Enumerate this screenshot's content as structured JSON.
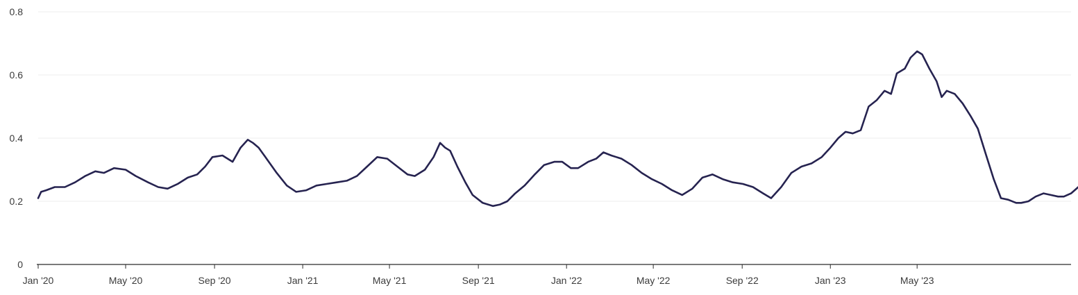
{
  "chart_data": {
    "type": "line",
    "title": "",
    "xlabel": "",
    "ylabel": "",
    "ylim": [
      0,
      0.8
    ],
    "yticks": [
      0,
      0.2,
      0.4,
      0.6,
      0.8
    ],
    "ytick_labels": [
      "0",
      "0.2",
      "0.4",
      "0.6",
      "0.8"
    ],
    "xlim": [
      "2020-01-01",
      "2023-11-30"
    ],
    "xticks": [
      {
        "date": "2020-01-01",
        "label": "Jan '20"
      },
      {
        "date": "2020-05-01",
        "label": "May '20"
      },
      {
        "date": "2020-09-01",
        "label": "Sep '20"
      },
      {
        "date": "2021-01-01",
        "label": "Jan '21"
      },
      {
        "date": "2021-05-01",
        "label": "May '21"
      },
      {
        "date": "2021-09-01",
        "label": "Sep '21"
      },
      {
        "date": "2022-01-01",
        "label": "Jan '22"
      },
      {
        "date": "2022-05-01",
        "label": "May '22"
      },
      {
        "date": "2022-09-01",
        "label": "Sep '22"
      },
      {
        "date": "2023-01-01",
        "label": "Jan '23"
      },
      {
        "date": "2023-05-01",
        "label": "May '23"
      }
    ],
    "grid": true,
    "legend": "none",
    "series": [
      {
        "color": "#262350",
        "points": [
          [
            "2020-01-01",
            0.21
          ],
          [
            "2020-01-05",
            0.23
          ],
          [
            "2020-01-12",
            0.235
          ],
          [
            "2020-01-24",
            0.245
          ],
          [
            "2020-02-07",
            0.245
          ],
          [
            "2020-02-21",
            0.26
          ],
          [
            "2020-03-06",
            0.28
          ],
          [
            "2020-03-20",
            0.295
          ],
          [
            "2020-04-01",
            0.29
          ],
          [
            "2020-04-15",
            0.305
          ],
          [
            "2020-05-01",
            0.3
          ],
          [
            "2020-05-15",
            0.28
          ],
          [
            "2020-06-01",
            0.26
          ],
          [
            "2020-06-15",
            0.245
          ],
          [
            "2020-06-28",
            0.24
          ],
          [
            "2020-07-12",
            0.255
          ],
          [
            "2020-07-26",
            0.275
          ],
          [
            "2020-08-08",
            0.285
          ],
          [
            "2020-08-19",
            0.31
          ],
          [
            "2020-08-29",
            0.34
          ],
          [
            "2020-09-12",
            0.345
          ],
          [
            "2020-09-26",
            0.325
          ],
          [
            "2020-10-07",
            0.37
          ],
          [
            "2020-10-17",
            0.395
          ],
          [
            "2020-10-24",
            0.385
          ],
          [
            "2020-11-01",
            0.37
          ],
          [
            "2020-11-12",
            0.335
          ],
          [
            "2020-11-26",
            0.29
          ],
          [
            "2020-12-10",
            0.25
          ],
          [
            "2020-12-23",
            0.23
          ],
          [
            "2021-01-06",
            0.235
          ],
          [
            "2021-01-20",
            0.25
          ],
          [
            "2021-02-03",
            0.255
          ],
          [
            "2021-02-17",
            0.26
          ],
          [
            "2021-03-03",
            0.265
          ],
          [
            "2021-03-17",
            0.28
          ],
          [
            "2021-03-31",
            0.31
          ],
          [
            "2021-04-14",
            0.34
          ],
          [
            "2021-04-28",
            0.335
          ],
          [
            "2021-05-12",
            0.31
          ],
          [
            "2021-05-26",
            0.285
          ],
          [
            "2021-06-05",
            0.28
          ],
          [
            "2021-06-19",
            0.3
          ],
          [
            "2021-07-01",
            0.34
          ],
          [
            "2021-07-10",
            0.385
          ],
          [
            "2021-07-17",
            0.37
          ],
          [
            "2021-07-24",
            0.36
          ],
          [
            "2021-08-03",
            0.31
          ],
          [
            "2021-08-14",
            0.26
          ],
          [
            "2021-08-24",
            0.22
          ],
          [
            "2021-09-07",
            0.195
          ],
          [
            "2021-09-21",
            0.185
          ],
          [
            "2021-10-01",
            0.19
          ],
          [
            "2021-10-11",
            0.2
          ],
          [
            "2021-10-22",
            0.225
          ],
          [
            "2021-11-04",
            0.25
          ],
          [
            "2021-11-18",
            0.285
          ],
          [
            "2021-12-01",
            0.315
          ],
          [
            "2021-12-15",
            0.325
          ],
          [
            "2021-12-26",
            0.325
          ],
          [
            "2022-01-07",
            0.305
          ],
          [
            "2022-01-17",
            0.305
          ],
          [
            "2022-01-31",
            0.325
          ],
          [
            "2022-02-11",
            0.335
          ],
          [
            "2022-02-21",
            0.355
          ],
          [
            "2022-03-04",
            0.345
          ],
          [
            "2022-03-18",
            0.335
          ],
          [
            "2022-04-01",
            0.315
          ],
          [
            "2022-04-15",
            0.29
          ],
          [
            "2022-04-29",
            0.27
          ],
          [
            "2022-05-13",
            0.255
          ],
          [
            "2022-05-27",
            0.235
          ],
          [
            "2022-06-10",
            0.22
          ],
          [
            "2022-06-24",
            0.24
          ],
          [
            "2022-07-08",
            0.275
          ],
          [
            "2022-07-22",
            0.285
          ],
          [
            "2022-08-05",
            0.27
          ],
          [
            "2022-08-19",
            0.26
          ],
          [
            "2022-09-02",
            0.255
          ],
          [
            "2022-09-16",
            0.245
          ],
          [
            "2022-09-30",
            0.225
          ],
          [
            "2022-10-11",
            0.21
          ],
          [
            "2022-10-25",
            0.245
          ],
          [
            "2022-11-08",
            0.29
          ],
          [
            "2022-11-22",
            0.31
          ],
          [
            "2022-12-06",
            0.32
          ],
          [
            "2022-12-20",
            0.34
          ],
          [
            "2023-01-01",
            0.37
          ],
          [
            "2023-01-12",
            0.4
          ],
          [
            "2023-01-22",
            0.42
          ],
          [
            "2023-02-01",
            0.415
          ],
          [
            "2023-02-12",
            0.425
          ],
          [
            "2023-02-23",
            0.5
          ],
          [
            "2023-03-06",
            0.52
          ],
          [
            "2023-03-17",
            0.55
          ],
          [
            "2023-03-26",
            0.54
          ],
          [
            "2023-04-03",
            0.605
          ],
          [
            "2023-04-14",
            0.62
          ],
          [
            "2023-04-22",
            0.655
          ],
          [
            "2023-05-01",
            0.675
          ],
          [
            "2023-05-08",
            0.665
          ],
          [
            "2023-05-18",
            0.62
          ],
          [
            "2023-05-28",
            0.58
          ],
          [
            "2023-06-04",
            0.53
          ],
          [
            "2023-06-11",
            0.55
          ],
          [
            "2023-06-22",
            0.54
          ],
          [
            "2023-07-03",
            0.51
          ],
          [
            "2023-07-14",
            0.47
          ],
          [
            "2023-07-24",
            0.43
          ],
          [
            "2023-08-04",
            0.35
          ],
          [
            "2023-08-15",
            0.27
          ],
          [
            "2023-08-25",
            0.21
          ],
          [
            "2023-09-04",
            0.205
          ],
          [
            "2023-09-15",
            0.195
          ],
          [
            "2023-09-22",
            0.195
          ],
          [
            "2023-10-02",
            0.2
          ],
          [
            "2023-10-12",
            0.215
          ],
          [
            "2023-10-23",
            0.225
          ],
          [
            "2023-11-02",
            0.22
          ],
          [
            "2023-11-12",
            0.215
          ],
          [
            "2023-11-20",
            0.215
          ],
          [
            "2023-11-30",
            0.225
          ],
          [
            "2023-12-10",
            0.245
          ],
          [
            "2023-12-20",
            0.265
          ],
          [
            "2024-01-03",
            0.28
          ]
        ]
      }
    ]
  }
}
